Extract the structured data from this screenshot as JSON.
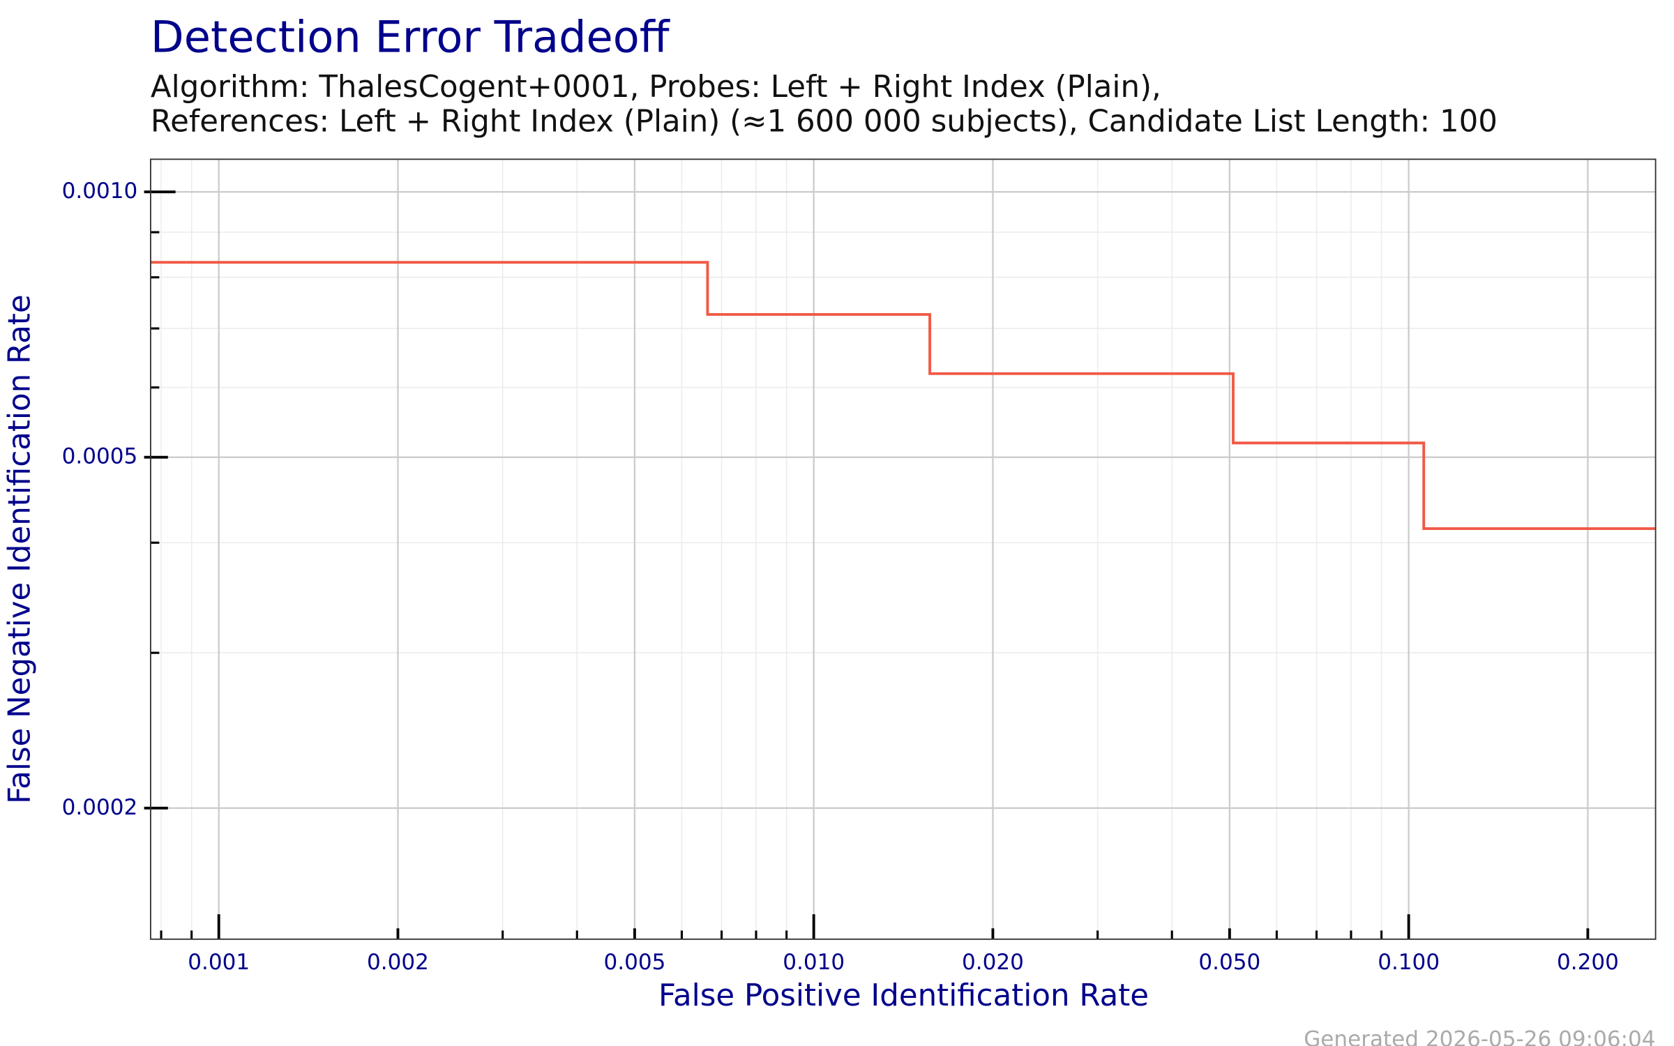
{
  "chart_data": {
    "type": "line",
    "title": "Detection Error Tradeoff",
    "subtitle": [
      "Algorithm: ThalesCogent+0001, Probes: Left + Right Index (Plain),",
      "References: Left + Right Index (Plain) (≈1 600 000 subjects), Candidate List Length: 100"
    ],
    "x_label": "False Positive Identification Rate",
    "y_label": "False Negative Identification Rate",
    "footer": "Generated 2026-05-26 09:06:04",
    "xscale": "log",
    "yscale": "log",
    "grid": true,
    "xlim": [
      0.000768,
      0.26
    ],
    "ylim": [
      0.000142,
      0.001089
    ],
    "xticks": [
      {
        "value": 0.001,
        "label": "0.001"
      },
      {
        "value": 0.002,
        "label": "0.002"
      },
      {
        "value": 0.005,
        "label": "0.005"
      },
      {
        "value": 0.01,
        "label": "0.010"
      },
      {
        "value": 0.02,
        "label": "0.020"
      },
      {
        "value": 0.05,
        "label": "0.050"
      },
      {
        "value": 0.1,
        "label": "0.100"
      },
      {
        "value": 0.2,
        "label": "0.200"
      }
    ],
    "xminorticks": [
      0.0008,
      0.0009,
      0.003,
      0.004,
      0.006,
      0.007,
      0.008,
      0.009,
      0.03,
      0.04,
      0.06,
      0.07,
      0.08,
      0.09
    ],
    "yticks": [
      {
        "value": 0.001,
        "label": "0.0010"
      },
      {
        "value": 0.0005,
        "label": "0.0005"
      },
      {
        "value": 0.0002,
        "label": "0.0002"
      }
    ],
    "yminorticks": [
      0.0009,
      0.0008,
      0.0007,
      0.0006,
      0.0004,
      0.0003
    ],
    "series": [
      {
        "name": "ThalesCogent+0001",
        "color": "#f05a46",
        "x": [
          0.000768,
          0.00663,
          0.00663,
          0.01567,
          0.01567,
          0.0507,
          0.0507,
          0.106,
          0.106,
          0.26
        ],
        "values": [
          0.000832,
          0.000832,
          0.000726,
          0.000726,
          0.000622,
          0.000622,
          0.000519,
          0.000519,
          0.000415,
          0.000415
        ]
      }
    ]
  }
}
